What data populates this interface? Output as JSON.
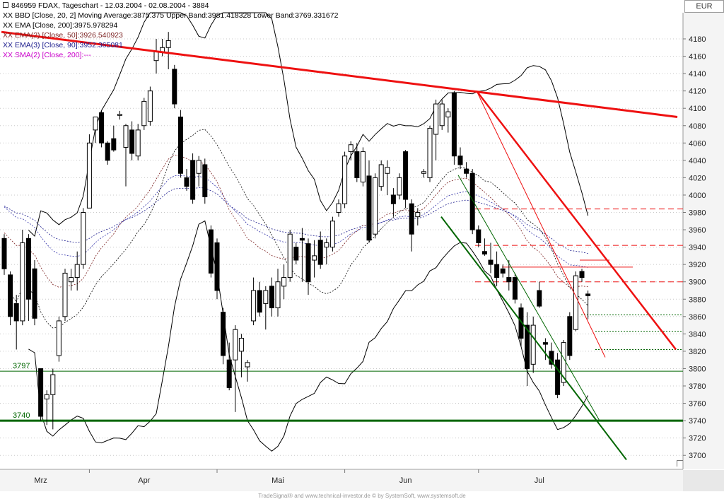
{
  "header": {
    "title": "846959  FDAX, Tageschart - 12.03.2004 - 02.08.2004 - 3884",
    "currency": "EUR"
  },
  "legend": [
    {
      "prefix": "XX",
      "text": "BBD [Close, 20, 2] Moving Average:3875.375 Upper Band:3981.418328 Lower Band:3769.331672",
      "color": "#000000"
    },
    {
      "prefix": "XX",
      "text": "EMA [Close, 200]:3975.978294",
      "color": "#000000"
    },
    {
      "prefix": "XX",
      "text": "EMA(2) [Close, 50]:3926.540923",
      "color": "#7a1f1f"
    },
    {
      "prefix": "XX",
      "text": "EMA(3) [Close, 90]:3952.365081",
      "color": "#1a1a8c"
    },
    {
      "prefix": "XX",
      "text": "SMA(2) [Close, 200]:---",
      "color": "#cc00cc"
    }
  ],
  "footer": "TradeSignal® and www.technical-investor.de ©  by SystemSoft, www.systemsoft.de",
  "chart_data": {
    "type": "candlestick",
    "title": "846959  FDAX, Tageschart - 12.03.2004 - 02.08.2004 - 3884",
    "ylim": [
      3695,
      4200
    ],
    "y_ticks": [
      3700,
      3720,
      3740,
      3760,
      3780,
      3800,
      3820,
      3840,
      3860,
      3880,
      3900,
      3920,
      3940,
      3960,
      3980,
      4000,
      4020,
      4040,
      4060,
      4080,
      4100,
      4120,
      4140,
      4160,
      4180
    ],
    "x_labels": [
      "Mrz",
      "Apr",
      "Mai",
      "Jun",
      "Jul"
    ],
    "colors": {
      "up": "#ffffff",
      "down": "#000000",
      "resistance": "#ee1111",
      "support": "#006600"
    },
    "horizontal_levels": [
      {
        "label": "3797",
        "value": 3797
      },
      {
        "label": "3740",
        "value": 3740
      }
    ],
    "candles": [
      {
        "o": 3950,
        "h": 3955,
        "l": 3908,
        "c": 3915
      },
      {
        "o": 3908,
        "h": 3912,
        "l": 3850,
        "c": 3860
      },
      {
        "o": 3875,
        "h": 3885,
        "l": 3822,
        "c": 3855
      },
      {
        "o": 3855,
        "h": 3960,
        "l": 3850,
        "c": 3945
      },
      {
        "o": 3950,
        "h": 3955,
        "l": 3855,
        "c": 3880
      },
      {
        "o": 3915,
        "h": 3925,
        "l": 3850,
        "c": 3858
      },
      {
        "o": 3800,
        "h": 3800,
        "l": 3740,
        "c": 3745
      },
      {
        "o": 3765,
        "h": 3775,
        "l": 3735,
        "c": 3770
      },
      {
        "o": 3770,
        "h": 3800,
        "l": 3730,
        "c": 3793
      },
      {
        "o": 3815,
        "h": 3860,
        "l": 3808,
        "c": 3855
      },
      {
        "o": 3860,
        "h": 3915,
        "l": 3855,
        "c": 3910
      },
      {
        "o": 3900,
        "h": 3915,
        "l": 3890,
        "c": 3905
      },
      {
        "o": 3905,
        "h": 3935,
        "l": 3890,
        "c": 3920
      },
      {
        "o": 3920,
        "h": 3985,
        "l": 3915,
        "c": 3980
      },
      {
        "o": 3985,
        "h": 4070,
        "l": 3985,
        "c": 4060
      },
      {
        "o": 4075,
        "h": 4090,
        "l": 4060,
        "c": 4090
      },
      {
        "o": 4095,
        "h": 4098,
        "l": 4055,
        "c": 4060
      },
      {
        "o": 4060,
        "h": 4062,
        "l": 4035,
        "c": 4040
      },
      {
        "o": 4065,
        "h": 4080,
        "l": 4050,
        "c": 4052
      },
      {
        "o": 4092,
        "h": 4097,
        "l": 4087,
        "c": 4093
      },
      {
        "o": 4055,
        "h": 4082,
        "l": 4010,
        "c": 4080
      },
      {
        "o": 4075,
        "h": 4085,
        "l": 4040,
        "c": 4048
      },
      {
        "o": 4045,
        "h": 4082,
        "l": 4040,
        "c": 4075
      },
      {
        "o": 4080,
        "h": 4112,
        "l": 4075,
        "c": 4108
      },
      {
        "o": 4085,
        "h": 4125,
        "l": 4080,
        "c": 4120
      },
      {
        "o": 4155,
        "h": 4180,
        "l": 4140,
        "c": 4165
      },
      {
        "o": 4165,
        "h": 4180,
        "l": 4160,
        "c": 4170
      },
      {
        "o": 4170,
        "h": 4188,
        "l": 4145,
        "c": 4178
      },
      {
        "o": 4145,
        "h": 4150,
        "l": 4100,
        "c": 4105
      },
      {
        "o": 4090,
        "h": 4098,
        "l": 4020,
        "c": 4025
      },
      {
        "o": 4020,
        "h": 4030,
        "l": 4005,
        "c": 4010
      },
      {
        "o": 4040,
        "h": 4048,
        "l": 3990,
        "c": 3995
      },
      {
        "o": 4025,
        "h": 4045,
        "l": 4010,
        "c": 4040
      },
      {
        "o": 4035,
        "h": 4042,
        "l": 3990,
        "c": 3998
      },
      {
        "o": 3960,
        "h": 3965,
        "l": 3905,
        "c": 3910
      },
      {
        "o": 3945,
        "h": 3950,
        "l": 3880,
        "c": 3890
      },
      {
        "o": 3865,
        "h": 3870,
        "l": 3805,
        "c": 3815
      },
      {
        "o": 3810,
        "h": 3830,
        "l": 3775,
        "c": 3778
      },
      {
        "o": 3810,
        "h": 3850,
        "l": 3750,
        "c": 3845
      },
      {
        "o": 3820,
        "h": 3840,
        "l": 3790,
        "c": 3835
      },
      {
        "o": 3802,
        "h": 3810,
        "l": 3785,
        "c": 3807
      },
      {
        "o": 3855,
        "h": 3905,
        "l": 3850,
        "c": 3890
      },
      {
        "o": 3890,
        "h": 3900,
        "l": 3860,
        "c": 3865
      },
      {
        "o": 3875,
        "h": 3895,
        "l": 3845,
        "c": 3890
      },
      {
        "o": 3895,
        "h": 3905,
        "l": 3860,
        "c": 3870
      },
      {
        "o": 3870,
        "h": 3915,
        "l": 3860,
        "c": 3900
      },
      {
        "o": 3895,
        "h": 3920,
        "l": 3880,
        "c": 3905
      },
      {
        "o": 3905,
        "h": 3960,
        "l": 3900,
        "c": 3955
      },
      {
        "o": 3940,
        "h": 3945,
        "l": 3920,
        "c": 3925
      },
      {
        "o": 3950,
        "h": 3962,
        "l": 3900,
        "c": 3948
      },
      {
        "o": 3944,
        "h": 3950,
        "l": 3885,
        "c": 3900
      },
      {
        "o": 3925,
        "h": 3948,
        "l": 3905,
        "c": 3930
      },
      {
        "o": 3948,
        "h": 3958,
        "l": 3915,
        "c": 3920
      },
      {
        "o": 3940,
        "h": 3950,
        "l": 3920,
        "c": 3945
      },
      {
        "o": 3940,
        "h": 3975,
        "l": 3935,
        "c": 3970
      },
      {
        "o": 3980,
        "h": 3995,
        "l": 3975,
        "c": 3990
      },
      {
        "o": 3990,
        "h": 4050,
        "l": 3985,
        "c": 4045
      },
      {
        "o": 4050,
        "h": 4062,
        "l": 4040,
        "c": 4058
      },
      {
        "o": 4050,
        "h": 4060,
        "l": 4015,
        "c": 4020
      },
      {
        "o": 4015,
        "h": 4055,
        "l": 4010,
        "c": 4050
      },
      {
        "o": 4022,
        "h": 4040,
        "l": 3945,
        "c": 3948
      },
      {
        "o": 3955,
        "h": 4025,
        "l": 3950,
        "c": 4020
      },
      {
        "o": 4010,
        "h": 4040,
        "l": 4005,
        "c": 4035
      },
      {
        "o": 4025,
        "h": 4040,
        "l": 4000,
        "c": 4032
      },
      {
        "o": 4000,
        "h": 4008,
        "l": 3975,
        "c": 3990
      },
      {
        "o": 4000,
        "h": 4025,
        "l": 3995,
        "c": 4020
      },
      {
        "o": 4050,
        "h": 4052,
        "l": 3985,
        "c": 3995
      },
      {
        "o": 3990,
        "h": 3995,
        "l": 3935,
        "c": 3955
      },
      {
        "o": 3975,
        "h": 3985,
        "l": 3965,
        "c": 3980
      },
      {
        "o": 4025,
        "h": 4030,
        "l": 4020,
        "c": 4027
      },
      {
        "o": 4020,
        "h": 4080,
        "l": 4015,
        "c": 4077
      },
      {
        "o": 4070,
        "h": 4110,
        "l": 4040,
        "c": 4105
      },
      {
        "o": 4080,
        "h": 4110,
        "l": 4075,
        "c": 4105
      },
      {
        "o": 4090,
        "h": 4100,
        "l": 4072,
        "c": 4096
      },
      {
        "o": 4118,
        "h": 4120,
        "l": 4035,
        "c": 4045
      },
      {
        "o": 4045,
        "h": 4055,
        "l": 4030,
        "c": 4035
      },
      {
        "o": 4030,
        "h": 4038,
        "l": 4020,
        "c": 4025
      },
      {
        "o": 4025,
        "h": 4030,
        "l": 3955,
        "c": 3960
      },
      {
        "o": 3960,
        "h": 3965,
        "l": 3940,
        "c": 3945
      },
      {
        "o": 3935,
        "h": 3950,
        "l": 3930,
        "c": 3932
      },
      {
        "o": 3925,
        "h": 3945,
        "l": 3910,
        "c": 3920
      },
      {
        "o": 3920,
        "h": 3935,
        "l": 3895,
        "c": 3905
      },
      {
        "o": 3915,
        "h": 3920,
        "l": 3905,
        "c": 3910
      },
      {
        "o": 3905,
        "h": 3925,
        "l": 3890,
        "c": 3900
      },
      {
        "o": 3905,
        "h": 3910,
        "l": 3875,
        "c": 3880
      },
      {
        "o": 3870,
        "h": 3875,
        "l": 3825,
        "c": 3835
      },
      {
        "o": 3850,
        "h": 3865,
        "l": 3780,
        "c": 3800
      },
      {
        "o": 3805,
        "h": 3860,
        "l": 3795,
        "c": 3850
      },
      {
        "o": 3890,
        "h": 3900,
        "l": 3870,
        "c": 3872
      },
      {
        "o": 3830,
        "h": 3835,
        "l": 3810,
        "c": 3828
      },
      {
        "o": 3820,
        "h": 3830,
        "l": 3800,
        "c": 3805
      },
      {
        "o": 3810,
        "h": 3818,
        "l": 3766,
        "c": 3770
      },
      {
        "o": 3784,
        "h": 3833,
        "l": 3780,
        "c": 3830
      },
      {
        "o": 3860,
        "h": 3865,
        "l": 3810,
        "c": 3815
      },
      {
        "o": 3845,
        "h": 3912,
        "l": 3843,
        "c": 3907
      },
      {
        "o": 3912,
        "h": 3915,
        "l": 3900,
        "c": 3905
      },
      {
        "o": 3886,
        "h": 3890,
        "l": 3857,
        "c": 3884
      }
    ]
  }
}
